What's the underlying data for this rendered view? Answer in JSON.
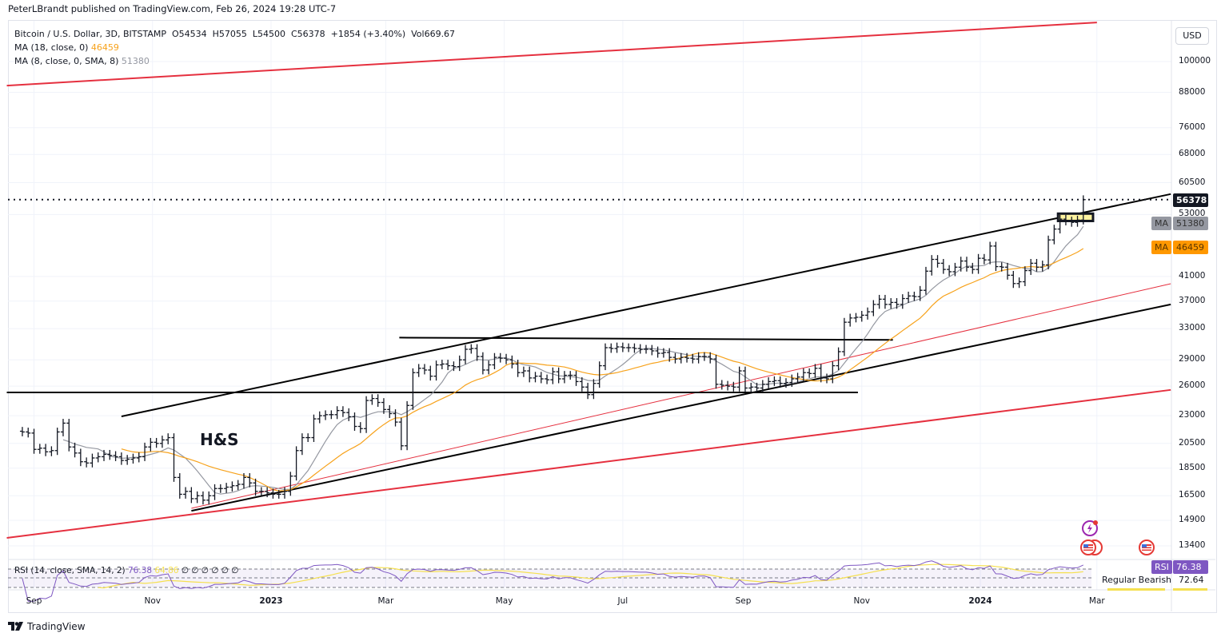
{
  "header": {
    "published": "PeterLBrandt published on TradingView.com, Feb 26, 2024 19:28 UTC-7",
    "symbol_line": "Bitcoin / U.S. Dollar, 3D, BITSTAMP",
    "ohlc": "O54534  H57055  L54500  C56378  +1854 (+3.40%)  Vol669.67",
    "ma18_label": "MA (18, close, 0)",
    "ma18_value": "46459",
    "ma8_label": "MA (8, close, 0, SMA, 8)",
    "ma8_value": "51380"
  },
  "price_axis": {
    "currency_button": "USD",
    "ticks": [
      "100000",
      "88000",
      "76000",
      "68000",
      "60500",
      "53000",
      "41000",
      "37000",
      "33000",
      "29000",
      "26000",
      "23000",
      "20500",
      "18500",
      "16500",
      "14900",
      "13400"
    ],
    "last_price": "56378",
    "ma8_tag": "MA",
    "ma8_tag_value": "51380",
    "ma18_tag": "MA",
    "ma18_tag_value": "46459"
  },
  "rsi": {
    "legend": "RSI (14, close, SMA, 14, 2)",
    "value": "76.38",
    "sma_value": "64.86",
    "extras": "∅ ∅ ∅ ∅ ∅ ∅",
    "tag": "RSI",
    "tag_value": "76.38",
    "divergence_label": "Regular Bearish",
    "divergence_value": "72.64",
    "line_color": "#7e57c2",
    "sma_color": "#f5e050"
  },
  "time_axis": {
    "ticks": [
      {
        "label": "Sep",
        "date": "2022-09-01",
        "bold": false
      },
      {
        "label": "Nov",
        "date": "2022-11-01",
        "bold": false
      },
      {
        "label": "2023",
        "date": "2023-01-01",
        "bold": true
      },
      {
        "label": "Mar",
        "date": "2023-03-01",
        "bold": false
      },
      {
        "label": "May",
        "date": "2023-05-01",
        "bold": false
      },
      {
        "label": "Jul",
        "date": "2023-07-01",
        "bold": false
      },
      {
        "label": "Sep",
        "date": "2023-09-01",
        "bold": false
      },
      {
        "label": "Nov",
        "date": "2023-11-01",
        "bold": false
      },
      {
        "label": "2024",
        "date": "2024-01-01",
        "bold": true
      },
      {
        "label": "Mar",
        "date": "2024-03-01",
        "bold": false
      }
    ]
  },
  "annotations": {
    "hs_label": "H&S"
  },
  "footer": {
    "brand": "TradingView"
  },
  "chart_data": {
    "type": "ohlc-bar",
    "interval": "3D",
    "scale": "log",
    "ylim": [
      13000,
      120000
    ],
    "first_bar_date": "2022-08-26",
    "close": [
      21500,
      21400,
      20000,
      20100,
      19800,
      19900,
      21500,
      22300,
      20200,
      19700,
      19000,
      18900,
      19300,
      19400,
      19600,
      19500,
      19400,
      19100,
      19200,
      19300,
      19400,
      20200,
      20600,
      20500,
      20800,
      21000,
      17800,
      16600,
      16800,
      16300,
      16500,
      16200,
      16500,
      17000,
      17000,
      17100,
      17200,
      17300,
      17800,
      17400,
      16800,
      16800,
      16700,
      16600,
      16600,
      16800,
      17900,
      19900,
      21000,
      21000,
      22700,
      23000,
      23100,
      23100,
      23500,
      23300,
      22900,
      22000,
      21800,
      24500,
      24700,
      24300,
      23600,
      23200,
      22400,
      20300,
      24000,
      27500,
      28000,
      27800,
      27100,
      28400,
      28500,
      28300,
      28200,
      29000,
      30300,
      30400,
      29400,
      27800,
      28400,
      29300,
      29200,
      29000,
      28500,
      27500,
      27700,
      26900,
      27100,
      26800,
      26700,
      27600,
      26800,
      27200,
      27200,
      26500,
      25900,
      25100,
      26300,
      28300,
      30500,
      30400,
      30600,
      30500,
      30500,
      30400,
      30300,
      30300,
      30100,
      29800,
      29900,
      29300,
      29100,
      29300,
      29200,
      29100,
      29400,
      29400,
      29100,
      26200,
      26100,
      26000,
      25900,
      27700,
      25800,
      25900,
      25800,
      26200,
      26500,
      26600,
      26300,
      26400,
      26800,
      27000,
      27500,
      27400,
      28000,
      26900,
      26800,
      28300,
      30000,
      33900,
      34500,
      34600,
      34900,
      35400,
      36500,
      37300,
      36500,
      36800,
      36500,
      37400,
      37800,
      37700,
      38700,
      41900,
      44000,
      43300,
      42200,
      41800,
      42600,
      43700,
      42600,
      42200,
      44200,
      43900,
      46500,
      42700,
      42600,
      41200,
      39800,
      40100,
      42000,
      43300,
      42600,
      43000,
      47700,
      49900,
      52000,
      51600,
      51300,
      51800,
      56378
    ],
    "moving_averages": [
      {
        "name": "MA (8, close, 0, SMA, 8)",
        "length": 8,
        "color": "#9598a1"
      },
      {
        "name": "MA (18, close, 0)",
        "length": 18,
        "color": "#f7a21b"
      }
    ],
    "trendlines": [
      {
        "id": "upper-red",
        "color": "#e5303f",
        "width": 2,
        "from": [
          "2022-08-18",
          90500
        ],
        "to": [
          "2024-03-01",
          117600
        ]
      },
      {
        "id": "lower-red",
        "color": "#e5303f",
        "width": 2,
        "from": [
          "2022-08-18",
          13850
        ],
        "to": [
          "2024-04-08",
          25600
        ]
      },
      {
        "id": "inner-red",
        "color": "#e5303f",
        "width": 1,
        "from": [
          "2022-11-21",
          15660
        ],
        "to": [
          "2024-04-08",
          39770
        ]
      },
      {
        "id": "channel-lower",
        "color": "#000000",
        "width": 2,
        "from": [
          "2022-11-21",
          15500
        ],
        "to": [
          "2024-04-08",
          36500
        ]
      },
      {
        "id": "channel-upper",
        "color": "#000000",
        "width": 2,
        "from": [
          "2022-10-16",
          22930
        ],
        "to": [
          "2024-04-08",
          57700
        ]
      },
      {
        "id": "neckline",
        "color": "#000000",
        "width": 2,
        "from": [
          "2022-08-18",
          25330
        ],
        "to": [
          "2023-10-30",
          25330
        ]
      },
      {
        "id": "range-top",
        "color": "#000000",
        "width": 2,
        "from": [
          "2023-03-08",
          31800
        ],
        "to": [
          "2023-11-17",
          31500
        ]
      }
    ],
    "price_line": 56378,
    "highlight_box": {
      "from": "2024-02-10",
      "to": "2024-02-28",
      "low": 51600,
      "high": 53200,
      "fill": "#fff3a0"
    },
    "hs_label_at": [
      "2022-11-24",
      21000
    ]
  }
}
